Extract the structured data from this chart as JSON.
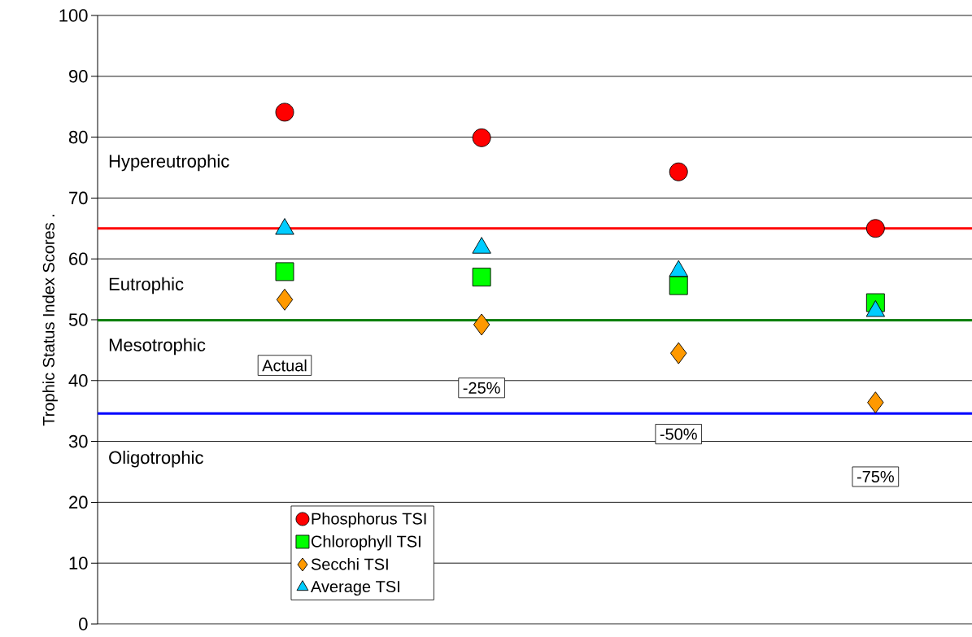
{
  "chart_data": {
    "type": "scatter",
    "ylabel": "Trophic Status Index Scores .",
    "categories": [
      null,
      null,
      null,
      null
    ],
    "series": [
      {
        "name": "Phosphorus TSI",
        "color": "#ff0000",
        "marker": "circle",
        "values": [
          84.1,
          79.9,
          74.3,
          65.0
        ]
      },
      {
        "name": "Chlorophyll TSI",
        "color": "#00ff00",
        "marker": "square",
        "values": [
          57.9,
          57.0,
          55.6,
          52.8
        ]
      },
      {
        "name": "Secchi TSI",
        "color": "#ff9900",
        "marker": "diamond",
        "values": [
          53.3,
          49.2,
          44.5,
          36.4
        ]
      },
      {
        "name": "Average TSI",
        "color": "#00ccff",
        "marker": "triangle",
        "values": [
          64.9,
          61.8,
          58.0,
          51.4
        ]
      }
    ],
    "ylim": [
      0,
      100
    ],
    "yticks": [
      0,
      10,
      20,
      30,
      40,
      50,
      60,
      70,
      80,
      90,
      100
    ],
    "grid": "y",
    "legend": "bottom left",
    "ref_lines": [
      {
        "axis": "y",
        "value": 65,
        "color": "#ff0000"
      },
      {
        "axis": "y",
        "value": 49.9,
        "color": "#008000"
      },
      {
        "axis": "y",
        "value": 34.6,
        "color": "#0000ff"
      }
    ],
    "annotations": [
      "Hypereutrophic",
      "Eutrophic",
      "Mesotrophic",
      "Oligotrophic",
      "Actual",
      "-25%",
      "-50%",
      "-75%"
    ]
  }
}
